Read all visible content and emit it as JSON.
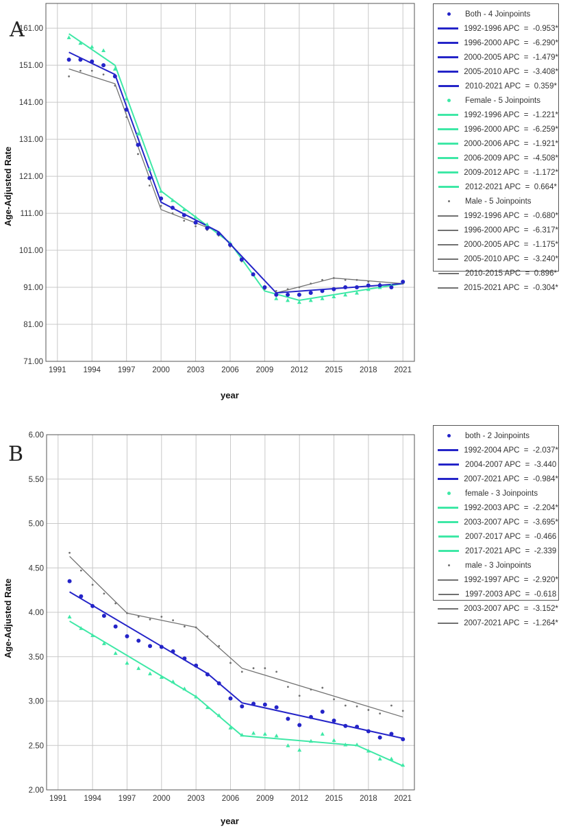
{
  "chart_data": [
    {
      "type": "line",
      "panel": "A",
      "xlabel": "year",
      "ylabel": "Age-Adjusted Rate",
      "xlim": [
        1990,
        2022
      ],
      "ylim": [
        71,
        167.7
      ],
      "xticks": [
        "1991",
        "1994",
        "1997",
        "2000",
        "2003",
        "2006",
        "2009",
        "2012",
        "2015",
        "2018",
        "2021"
      ],
      "yticks": [
        "71.00",
        "81.00",
        "91.00",
        "101.00",
        "111.00",
        "121.00",
        "131.00",
        "141.00",
        "151.00",
        "161.00"
      ],
      "grid": true,
      "legend_position": "right",
      "x": [
        1992,
        1993,
        1994,
        1995,
        1996,
        1997,
        1998,
        1999,
        2000,
        2001,
        2002,
        2003,
        2004,
        2005,
        2006,
        2007,
        2008,
        2009,
        2010,
        2011,
        2012,
        2013,
        2014,
        2015,
        2016,
        2017,
        2018,
        2019,
        2020,
        2021
      ],
      "series": [
        {
          "name": "Both - 4 Joinpoints",
          "key": "both",
          "color": "#2424c8",
          "marker": "circle",
          "values": [
            152.5,
            152.5,
            152,
            151,
            148,
            139,
            129.5,
            120.5,
            115,
            112.5,
            110.5,
            108.5,
            107,
            105.5,
            102.5,
            98.5,
            94.5,
            91,
            89,
            89,
            89,
            89.5,
            90,
            90.5,
            91,
            91,
            91.5,
            91.5,
            91,
            92.5
          ],
          "fit": {
            "x": [
              1992,
              1996,
              2000,
              2005,
              2010,
              2021
            ],
            "y": [
              154.5,
              148.5,
              114,
              106,
              89.5,
              92
            ]
          },
          "segments": [
            "1992-1996 APC  =  -0.953*",
            "1996-2000 APC  =  -6.290*",
            "2000-2005 APC  =  -1.479*",
            "2005-2010 APC  =  -3.408*",
            "2010-2021 APC  =  0.359*"
          ]
        },
        {
          "name": "Female - 5 Joinpoints",
          "key": "female",
          "color": "#3ee8a6",
          "marker": "triangle",
          "values": [
            158.5,
            157,
            156,
            155,
            150,
            142,
            132.5,
            123,
            117,
            114.5,
            112,
            110,
            108,
            105.5,
            103,
            98.5,
            94.5,
            91,
            88,
            87.5,
            87,
            87.5,
            88,
            88.5,
            89,
            89.5,
            90.5,
            91,
            91.5,
            92.5
          ],
          "fit": {
            "x": [
              1992,
              1996,
              2000,
              2006,
              2009,
              2012,
              2021
            ],
            "y": [
              159.5,
              151,
              117,
              103,
              90,
              87.5,
              92
            ]
          },
          "segments": [
            "1992-1996 APC  =  -1.221*",
            "1996-2000 APC  =  -6.259*",
            "2000-2006 APC  =  -1.921*",
            "2006-2009 APC  =  -4.508*",
            "2009-2012 APC  =  -1.172*",
            "2012-2021 APC  =  0.664*"
          ]
        },
        {
          "name": "Male - 5 Joinpoints",
          "key": "male",
          "color": "#707070",
          "marker": "plus",
          "values": [
            148,
            149.5,
            149.5,
            148.5,
            145.5,
            137,
            127,
            118.5,
            113,
            111,
            109,
            107.5,
            106.5,
            105,
            102,
            98,
            94.5,
            90.5,
            90,
            90.5,
            91,
            92,
            93,
            93.5,
            93,
            93,
            92.5,
            92,
            91.5,
            92
          ],
          "fit": {
            "x": [
              1992,
              1996,
              2000,
              2005,
              2010,
              2015,
              2021
            ],
            "y": [
              150,
              146,
              112,
              106,
              89.5,
              93.5,
              92
            ]
          },
          "segments": [
            "1992-1996 APC  =  -0.680*",
            "1996-2000 APC  =  -6.317*",
            "2000-2005 APC  =  -1.175*",
            "2005-2010 APC  =  -3.240*",
            "2010-2015 APC  =  0.896*",
            "2015-2021 APC  =  -0.304*"
          ]
        }
      ]
    },
    {
      "type": "line",
      "panel": "B",
      "xlabel": "year",
      "ylabel": "Age-Adjusted Rate",
      "xlim": [
        1990,
        2022
      ],
      "ylim": [
        2.0,
        6.0
      ],
      "xticks": [
        "1991",
        "1994",
        "1997",
        "2000",
        "2003",
        "2006",
        "2009",
        "2012",
        "2015",
        "2018",
        "2021"
      ],
      "yticks": [
        "2.00",
        "2.50",
        "3.00",
        "3.50",
        "4.00",
        "4.50",
        "5.00",
        "5.50",
        "6.00"
      ],
      "grid": true,
      "legend_position": "right",
      "x": [
        1992,
        1993,
        1994,
        1995,
        1996,
        1997,
        1998,
        1999,
        2000,
        2001,
        2002,
        2003,
        2004,
        2005,
        2006,
        2007,
        2008,
        2009,
        2010,
        2011,
        2012,
        2013,
        2014,
        2015,
        2016,
        2017,
        2018,
        2019,
        2020,
        2021
      ],
      "series": [
        {
          "name": "both - 2 Joinpoints",
          "key": "both",
          "color": "#2424c8",
          "marker": "circle",
          "values": [
            4.35,
            4.18,
            4.07,
            3.96,
            3.84,
            3.73,
            3.68,
            3.62,
            3.61,
            3.56,
            3.48,
            3.4,
            3.3,
            3.2,
            3.03,
            2.94,
            2.97,
            2.96,
            2.93,
            2.8,
            2.73,
            2.82,
            2.88,
            2.78,
            2.72,
            2.71,
            2.66,
            2.59,
            2.63,
            2.57
          ],
          "fit": {
            "x": [
              1992,
              2004,
              2007,
              2021
            ],
            "y": [
              4.23,
              3.31,
              2.98,
              2.58
            ]
          },
          "segments": [
            "1992-2004 APC  =  -2.037*",
            "2004-2007 APC  =  -3.440",
            "2007-2021 APC  =  -0.984*"
          ]
        },
        {
          "name": "female - 3 Joinpoints",
          "key": "female",
          "color": "#3ee8a6",
          "marker": "triangle",
          "values": [
            3.95,
            3.82,
            3.74,
            3.65,
            3.54,
            3.43,
            3.37,
            3.31,
            3.27,
            3.22,
            3.14,
            3.05,
            2.93,
            2.84,
            2.7,
            2.62,
            2.64,
            2.63,
            2.61,
            2.5,
            2.45,
            2.55,
            2.63,
            2.56,
            2.51,
            2.51,
            2.44,
            2.35,
            2.35,
            2.28
          ],
          "fit": {
            "x": [
              1992,
              2003,
              2007,
              2017,
              2021
            ],
            "y": [
              3.9,
              3.05,
              2.61,
              2.5,
              2.27
            ]
          },
          "segments": [
            "1992-2003 APC  =  -2.204*",
            "2003-2007 APC  =  -3.695*",
            "2007-2017 APC  =  -0.466",
            "2017-2021 APC  =  -2.339"
          ]
        },
        {
          "name": "male - 3 Joinpoints",
          "key": "male",
          "color": "#707070",
          "marker": "plus",
          "values": [
            4.67,
            4.47,
            4.31,
            4.21,
            4.1,
            3.99,
            3.95,
            3.92,
            3.95,
            3.91,
            3.84,
            3.83,
            3.73,
            3.62,
            3.43,
            3.33,
            3.37,
            3.37,
            3.33,
            3.16,
            3.06,
            3.13,
            3.15,
            3.02,
            2.95,
            2.94,
            2.9,
            2.86,
            2.95,
            2.89
          ],
          "fit": {
            "x": [
              1992,
              1997,
              2003,
              2007,
              2021
            ],
            "y": [
              4.63,
              3.99,
              3.83,
              3.37,
              2.82
            ]
          },
          "segments": [
            "1992-1997 APC  =  -2.920*",
            "1997-2003 APC  =  -0.618",
            "2003-2007 APC  =  -3.152*",
            "2007-2021 APC  =  -1.264*"
          ]
        }
      ]
    }
  ]
}
